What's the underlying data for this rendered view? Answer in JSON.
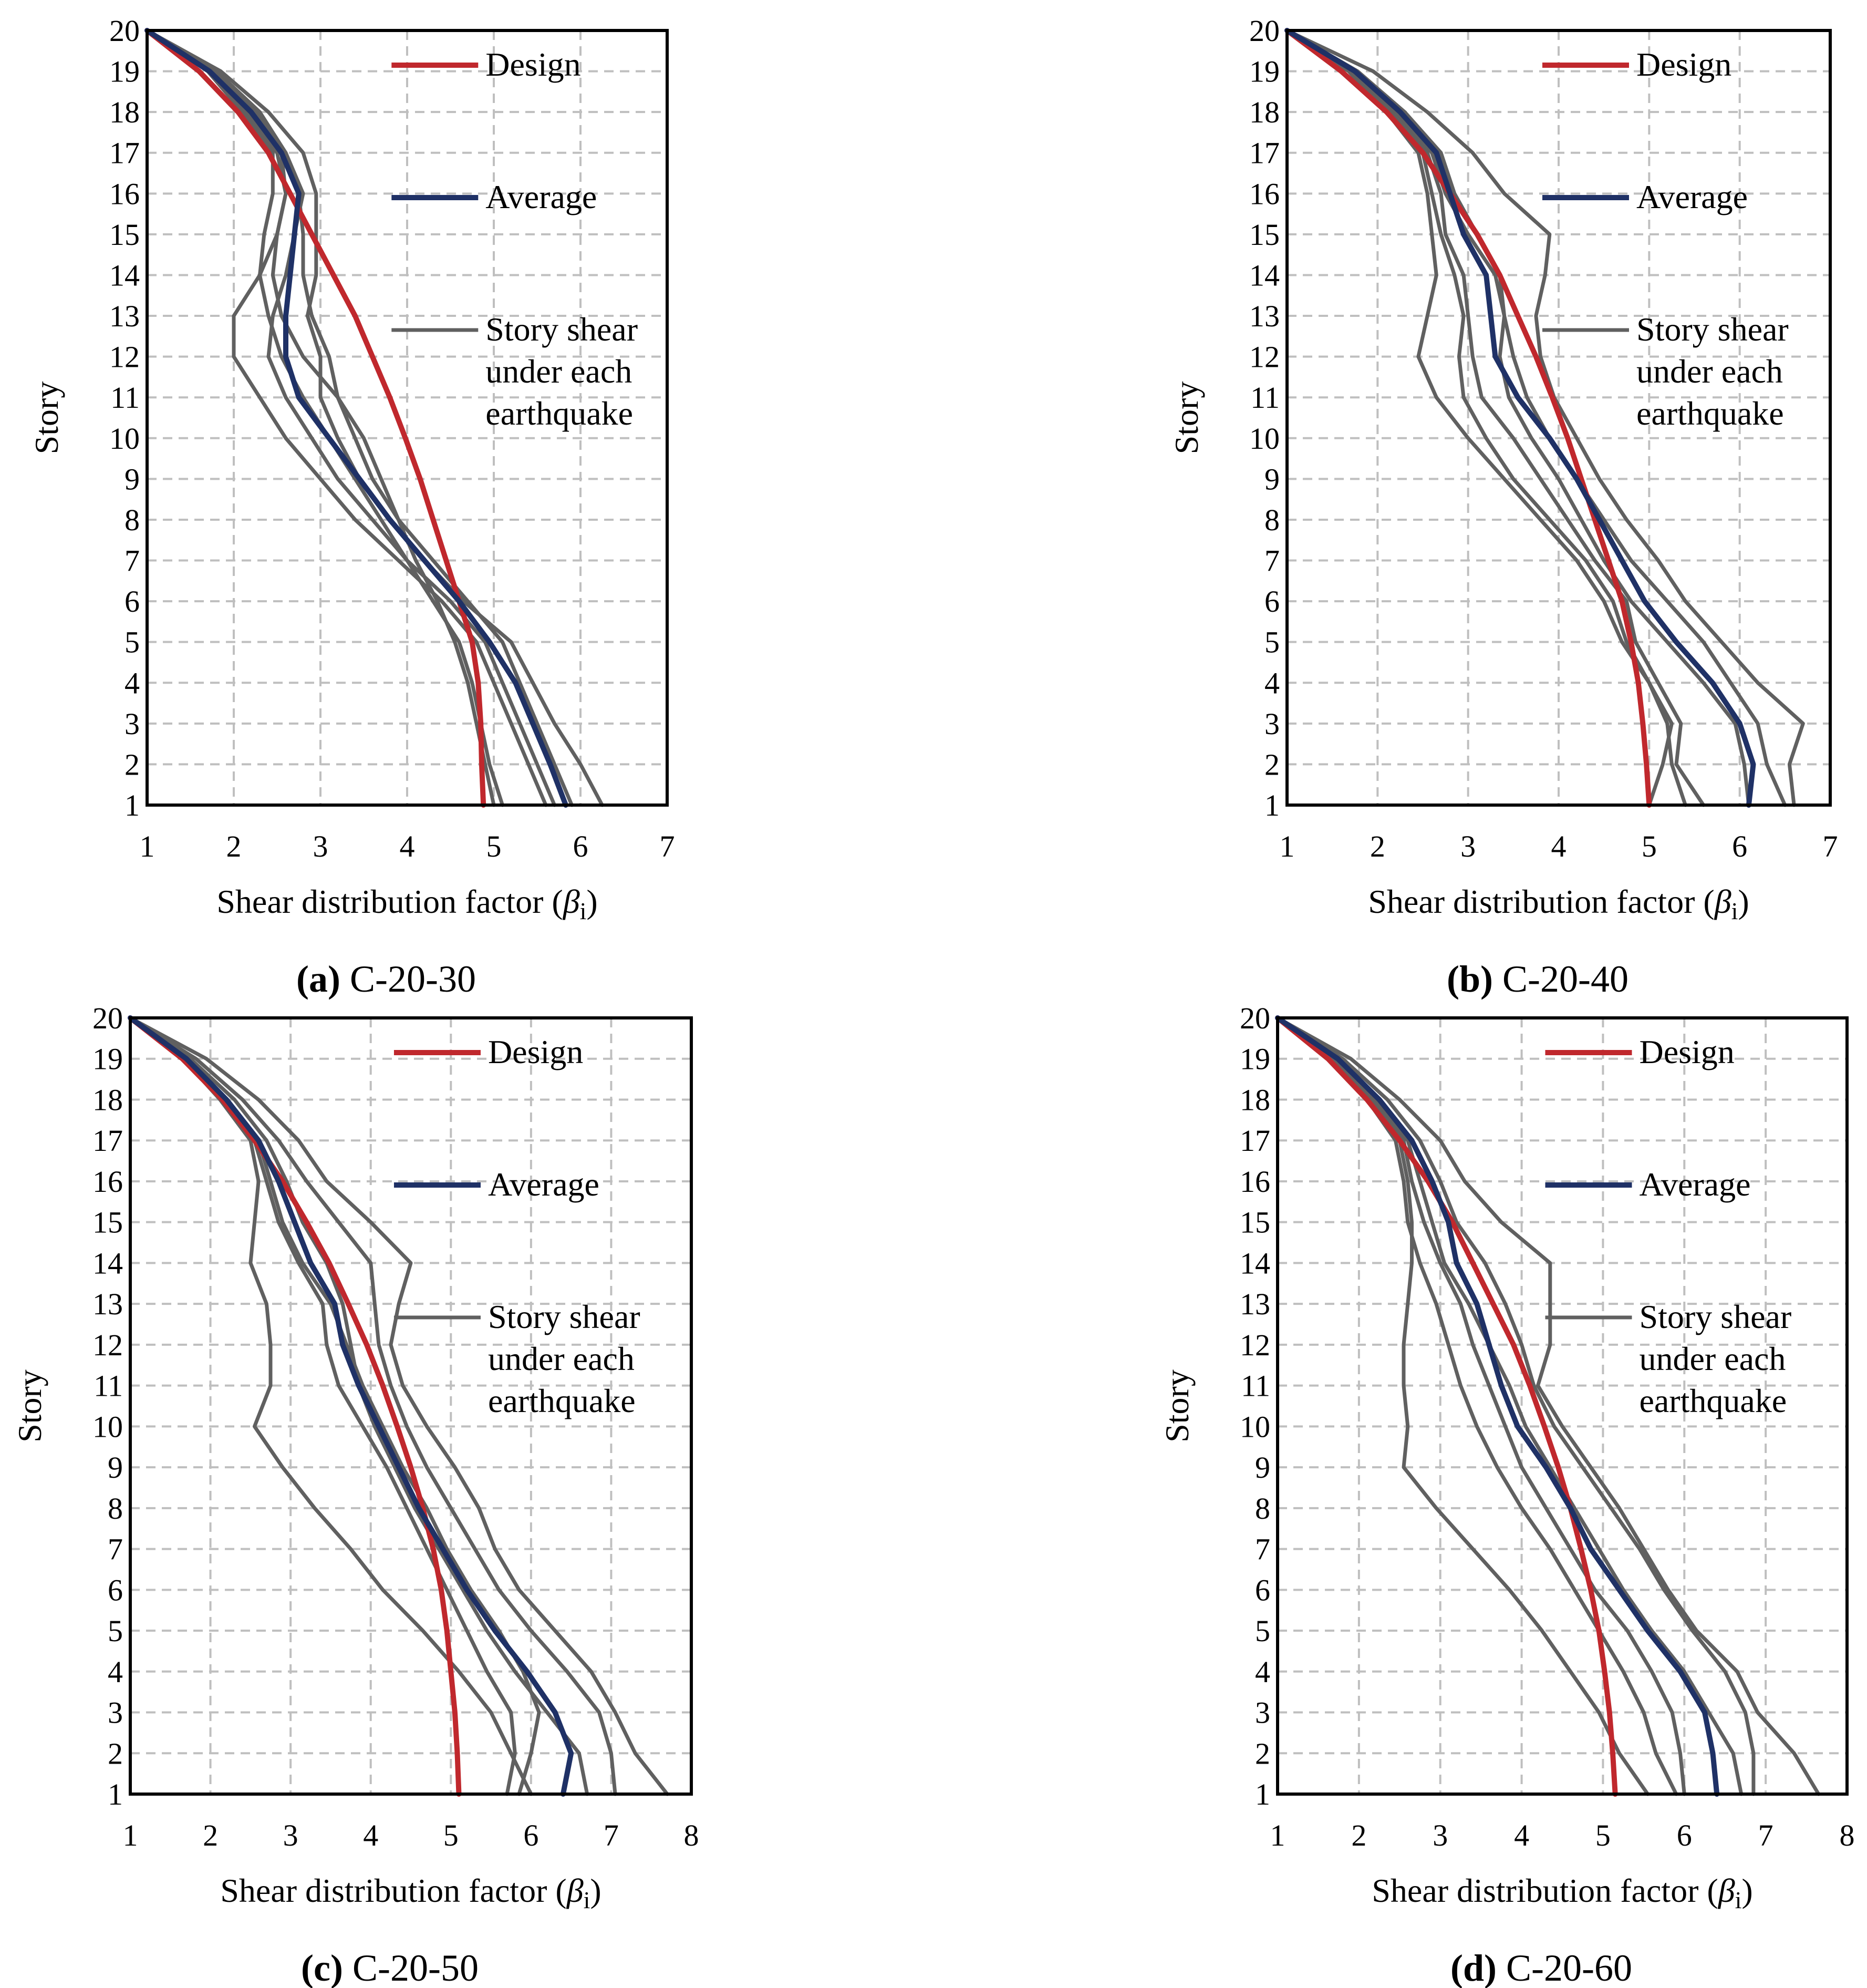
{
  "figure": {
    "ylabel_axis_title": "Story",
    "xlabel_main": "Shear distribution factor (",
    "xlabel_symbol": "β",
    "xlabel_subscript": "i",
    "xlabel_close": ")"
  },
  "legend": {
    "design": "Design",
    "average": "Average",
    "story_line1": "Story shear",
    "story_line2": "under each",
    "story_line3": "earthquake"
  },
  "colors": {
    "design": "#c0282d",
    "average": "#1f3166",
    "story": "#606060"
  },
  "chart_data": [
    {
      "type": "line",
      "caption_label": "(a)",
      "caption_name": "C-20-30",
      "xlabel": "Shear distribution factor (βi)",
      "ylabel": "Story",
      "xlim": [
        1,
        7
      ],
      "ylim": [
        1,
        20
      ],
      "xticks": [
        1,
        2,
        3,
        4,
        5,
        6,
        7
      ],
      "yticks": [
        1,
        2,
        3,
        4,
        5,
        6,
        7,
        8,
        9,
        10,
        11,
        12,
        13,
        14,
        15,
        16,
        17,
        18,
        19,
        20
      ],
      "legend_position": "top-right",
      "stories": [
        1,
        2,
        3,
        4,
        5,
        6,
        7,
        8,
        9,
        10,
        11,
        12,
        13,
        14,
        15,
        16,
        17,
        18,
        19,
        20
      ],
      "design": [
        4.88,
        4.86,
        4.85,
        4.82,
        4.75,
        4.6,
        4.45,
        4.3,
        4.15,
        3.98,
        3.8,
        3.6,
        3.4,
        3.15,
        2.9,
        2.65,
        2.4,
        2.05,
        1.6,
        1.0
      ],
      "average": [
        5.83,
        5.65,
        5.45,
        5.25,
        4.95,
        4.6,
        4.2,
        3.8,
        3.45,
        3.1,
        2.75,
        2.6,
        2.6,
        2.65,
        2.7,
        2.75,
        2.55,
        2.2,
        1.72,
        1.0
      ],
      "story_series": [
        [
          6.25,
          6.0,
          5.7,
          5.45,
          5.2,
          4.65,
          4.2,
          3.8,
          3.45,
          3.2,
          3.0,
          3.0,
          2.85,
          2.95,
          2.95,
          2.95,
          2.8,
          2.4,
          1.85,
          1.0
        ],
        [
          5.9,
          5.7,
          5.5,
          5.3,
          5.1,
          4.7,
          4.3,
          3.9,
          3.6,
          3.4,
          3.2,
          3.1,
          2.9,
          2.8,
          2.8,
          2.75,
          2.6,
          2.3,
          1.8,
          1.0
        ],
        [
          5.7,
          5.5,
          5.3,
          5.1,
          4.9,
          4.5,
          4.0,
          3.6,
          3.2,
          2.9,
          2.6,
          2.4,
          2.45,
          2.6,
          2.7,
          2.8,
          2.6,
          2.25,
          1.75,
          1.0
        ],
        [
          5.6,
          5.4,
          5.2,
          5.0,
          4.8,
          4.4,
          3.9,
          3.4,
          3.0,
          2.6,
          2.3,
          2.0,
          2.0,
          2.3,
          2.5,
          2.6,
          2.5,
          2.15,
          1.7,
          1.0
        ],
        [
          5.1,
          4.95,
          4.85,
          4.75,
          4.6,
          4.3,
          4.0,
          3.7,
          3.4,
          3.1,
          2.8,
          2.55,
          2.4,
          2.3,
          2.35,
          2.45,
          2.45,
          2.1,
          1.7,
          1.0
        ],
        [
          5.0,
          4.9,
          4.8,
          4.7,
          4.55,
          4.35,
          4.1,
          3.9,
          3.7,
          3.5,
          3.2,
          2.8,
          2.55,
          2.45,
          2.5,
          2.6,
          2.55,
          2.2,
          1.75,
          1.0
        ]
      ]
    },
    {
      "type": "line",
      "caption_label": "(b)",
      "caption_name": "C-20-40",
      "xlabel": "Shear distribution factor (βi)",
      "ylabel": "Story",
      "xlim": [
        1,
        7
      ],
      "ylim": [
        1,
        20
      ],
      "xticks": [
        1,
        2,
        3,
        4,
        5,
        6,
        7
      ],
      "yticks": [
        1,
        2,
        3,
        4,
        5,
        6,
        7,
        8,
        9,
        10,
        11,
        12,
        13,
        14,
        15,
        16,
        17,
        18,
        19,
        20
      ],
      "legend_position": "top-right",
      "stories": [
        1,
        2,
        3,
        4,
        5,
        6,
        7,
        8,
        9,
        10,
        11,
        12,
        13,
        14,
        15,
        16,
        17,
        18,
        19,
        20
      ],
      "design": [
        5.0,
        4.97,
        4.93,
        4.88,
        4.8,
        4.7,
        4.55,
        4.4,
        4.25,
        4.1,
        3.93,
        3.75,
        3.55,
        3.35,
        3.1,
        2.8,
        2.5,
        2.1,
        1.6,
        1.0
      ],
      "average": [
        6.1,
        6.15,
        6.0,
        5.7,
        5.3,
        4.95,
        4.7,
        4.45,
        4.2,
        3.9,
        3.55,
        3.3,
        3.25,
        3.2,
        2.95,
        2.8,
        2.65,
        2.25,
        1.75,
        1.0
      ],
      "story_series": [
        [
          6.6,
          6.55,
          6.7,
          6.2,
          5.8,
          5.4,
          5.1,
          4.75,
          4.45,
          4.2,
          3.95,
          3.8,
          3.75,
          3.85,
          3.9,
          3.4,
          3.05,
          2.55,
          1.95,
          1.0
        ],
        [
          6.5,
          6.3,
          6.2,
          5.9,
          5.6,
          5.2,
          4.8,
          4.5,
          4.2,
          3.9,
          3.65,
          3.5,
          3.4,
          3.3,
          3.0,
          2.75,
          2.6,
          2.25,
          1.75,
          1.0
        ],
        [
          6.1,
          6.05,
          5.95,
          5.6,
          5.2,
          4.8,
          4.5,
          4.25,
          4.0,
          3.7,
          3.45,
          3.35,
          3.4,
          3.35,
          3.1,
          2.85,
          2.7,
          2.3,
          1.78,
          1.0
        ],
        [
          5.6,
          5.3,
          5.35,
          5.1,
          4.85,
          4.75,
          4.4,
          4.1,
          3.8,
          3.5,
          3.15,
          3.05,
          3.0,
          2.95,
          2.75,
          2.7,
          2.55,
          2.2,
          1.72,
          1.0
        ],
        [
          5.4,
          5.25,
          5.2,
          5.0,
          4.75,
          4.6,
          4.3,
          3.9,
          3.5,
          3.2,
          2.95,
          2.9,
          2.95,
          2.85,
          2.7,
          2.6,
          2.5,
          2.15,
          1.7,
          1.0
        ],
        [
          5.0,
          5.15,
          5.25,
          5.0,
          4.7,
          4.5,
          4.2,
          3.8,
          3.4,
          3.0,
          2.65,
          2.45,
          2.55,
          2.65,
          2.6,
          2.55,
          2.45,
          2.1,
          1.68,
          1.0
        ]
      ]
    },
    {
      "type": "line",
      "caption_label": "(c)",
      "caption_name": "C-20-50",
      "xlabel": "Shear distribution factor (βi)",
      "ylabel": "Story",
      "xlim": [
        1,
        8
      ],
      "ylim": [
        1,
        20
      ],
      "xticks": [
        1,
        2,
        3,
        4,
        5,
        6,
        7,
        8
      ],
      "yticks": [
        1,
        2,
        3,
        4,
        5,
        6,
        7,
        8,
        9,
        10,
        11,
        12,
        13,
        14,
        15,
        16,
        17,
        18,
        19,
        20
      ],
      "legend_position": "top-right",
      "stories": [
        1,
        2,
        3,
        4,
        5,
        6,
        7,
        8,
        9,
        10,
        11,
        12,
        13,
        14,
        15,
        16,
        17,
        18,
        19,
        20
      ],
      "design": [
        5.1,
        5.08,
        5.05,
        5.0,
        4.95,
        4.88,
        4.78,
        4.65,
        4.5,
        4.33,
        4.15,
        3.95,
        3.72,
        3.48,
        3.2,
        2.9,
        2.55,
        2.15,
        1.65,
        1.0
      ],
      "average": [
        6.4,
        6.5,
        6.3,
        5.95,
        5.55,
        5.2,
        4.9,
        4.6,
        4.35,
        4.1,
        3.85,
        3.65,
        3.55,
        3.25,
        3.05,
        2.85,
        2.6,
        2.2,
        1.7,
        1.0
      ],
      "story_series": [
        [
          7.7,
          7.3,
          7.05,
          6.75,
          6.3,
          5.85,
          5.55,
          5.35,
          5.05,
          4.7,
          4.4,
          4.25,
          4.35,
          4.5,
          4.0,
          3.45,
          3.1,
          2.6,
          1.95,
          1.0
        ],
        [
          7.05,
          7.0,
          6.85,
          6.45,
          6.0,
          5.6,
          5.3,
          5.0,
          4.7,
          4.45,
          4.25,
          4.1,
          4.05,
          4.0,
          3.6,
          3.2,
          2.85,
          2.4,
          1.82,
          1.0
        ],
        [
          6.7,
          6.6,
          6.2,
          5.8,
          5.45,
          5.15,
          4.85,
          4.55,
          4.3,
          4.05,
          3.85,
          3.75,
          3.65,
          3.45,
          3.15,
          2.95,
          2.7,
          2.3,
          1.75,
          1.0
        ],
        [
          5.85,
          6.0,
          6.1,
          5.9,
          5.6,
          5.25,
          4.95,
          4.7,
          4.4,
          4.15,
          3.9,
          3.7,
          3.5,
          3.15,
          2.9,
          2.75,
          2.6,
          2.2,
          1.7,
          1.0
        ],
        [
          5.7,
          5.8,
          5.75,
          5.45,
          5.2,
          4.95,
          4.7,
          4.45,
          4.2,
          3.9,
          3.6,
          3.45,
          3.4,
          3.1,
          2.85,
          2.7,
          2.55,
          2.15,
          1.68,
          1.0
        ],
        [
          6.0,
          5.75,
          5.5,
          5.1,
          4.65,
          4.15,
          3.75,
          3.3,
          2.9,
          2.55,
          2.75,
          2.75,
          2.7,
          2.5,
          2.55,
          2.6,
          2.5,
          2.12,
          1.66,
          1.0
        ]
      ]
    },
    {
      "type": "line",
      "caption_label": "(d)",
      "caption_name": "C-20-60",
      "xlabel": "Shear distribution factor (βi)",
      "ylabel": "Story",
      "xlim": [
        1,
        8
      ],
      "ylim": [
        1,
        20
      ],
      "xticks": [
        1,
        2,
        3,
        4,
        5,
        6,
        7,
        8
      ],
      "yticks": [
        1,
        2,
        3,
        4,
        5,
        6,
        7,
        8,
        9,
        10,
        11,
        12,
        13,
        14,
        15,
        16,
        17,
        18,
        19,
        20
      ],
      "legend_position": "top-right",
      "stories": [
        1,
        2,
        3,
        4,
        5,
        6,
        7,
        8,
        9,
        10,
        11,
        12,
        13,
        14,
        15,
        16,
        17,
        18,
        19,
        20
      ],
      "design": [
        5.15,
        5.12,
        5.08,
        5.02,
        4.95,
        4.85,
        4.73,
        4.6,
        4.45,
        4.28,
        4.1,
        3.9,
        3.65,
        3.4,
        3.15,
        2.85,
        2.5,
        2.1,
        1.62,
        1.0
      ],
      "average": [
        6.4,
        6.35,
        6.25,
        5.95,
        5.55,
        5.2,
        4.85,
        4.6,
        4.3,
        3.95,
        3.75,
        3.6,
        3.45,
        3.2,
        3.1,
        2.9,
        2.65,
        2.25,
        1.74,
        1.0
      ],
      "story_series": [
        [
          7.65,
          7.35,
          6.9,
          6.65,
          6.15,
          5.8,
          5.5,
          5.2,
          4.85,
          4.5,
          4.2,
          4.35,
          4.35,
          4.35,
          3.75,
          3.3,
          3.0,
          2.5,
          1.9,
          1.0
        ],
        [
          6.85,
          6.85,
          6.75,
          6.5,
          6.1,
          5.75,
          5.45,
          5.1,
          4.75,
          4.4,
          4.15,
          4.0,
          3.8,
          3.55,
          3.2,
          3.0,
          2.75,
          2.35,
          1.8,
          1.0
        ],
        [
          6.7,
          6.6,
          6.3,
          6.0,
          5.6,
          5.25,
          4.95,
          4.65,
          4.35,
          4.05,
          3.85,
          3.6,
          3.35,
          3.05,
          2.9,
          2.75,
          2.6,
          2.2,
          1.72,
          1.0
        ],
        [
          6.0,
          5.95,
          5.85,
          5.6,
          5.3,
          4.9,
          4.6,
          4.3,
          4.0,
          3.8,
          3.6,
          3.4,
          3.25,
          3.0,
          2.8,
          2.65,
          2.55,
          2.15,
          1.7,
          1.0
        ],
        [
          5.9,
          5.65,
          5.5,
          5.25,
          4.95,
          4.65,
          4.35,
          4.0,
          3.7,
          3.45,
          3.25,
          3.1,
          2.95,
          2.75,
          2.6,
          2.55,
          2.45,
          2.1,
          1.66,
          1.0
        ],
        [
          5.55,
          5.2,
          4.95,
          4.6,
          4.25,
          3.85,
          3.4,
          2.95,
          2.55,
          2.6,
          2.55,
          2.55,
          2.6,
          2.65,
          2.65,
          2.6,
          2.5,
          2.12,
          1.68,
          1.0
        ]
      ]
    }
  ]
}
